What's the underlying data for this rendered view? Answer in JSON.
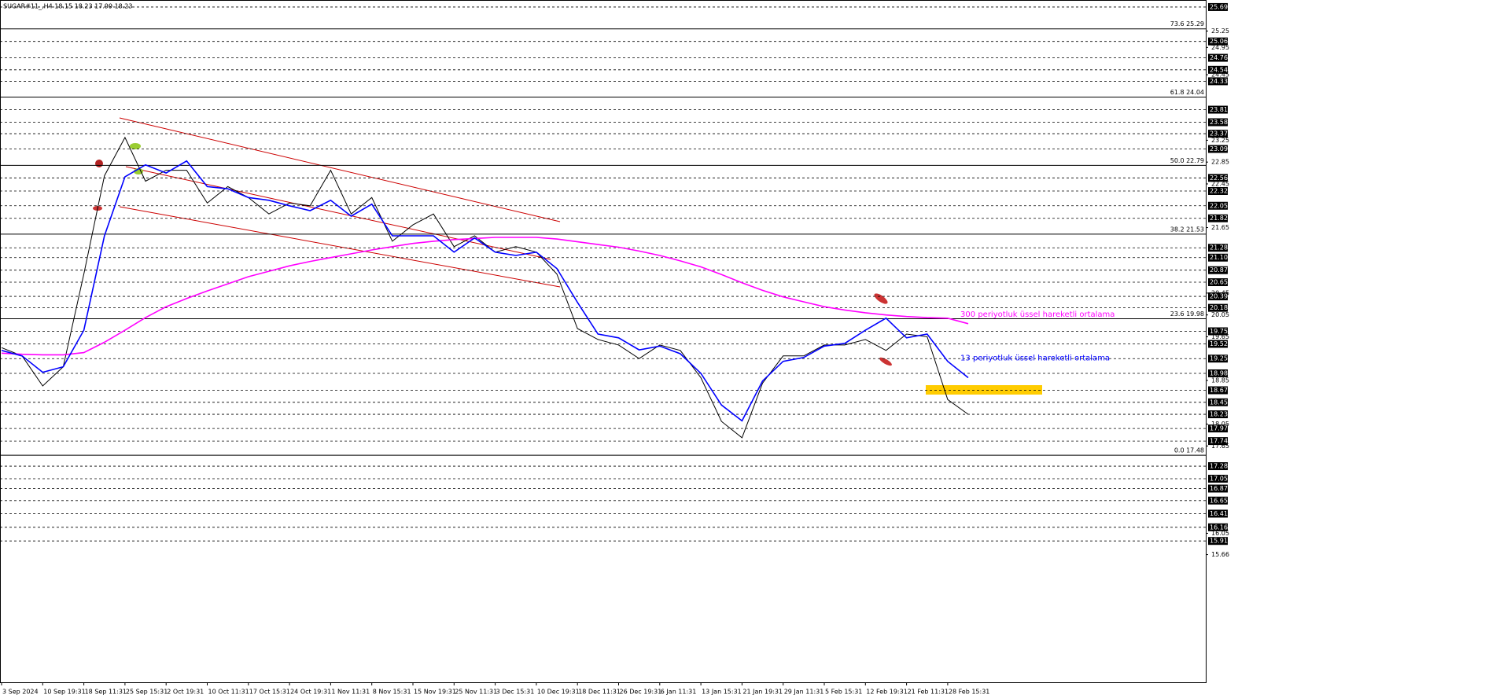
{
  "chart_data": {
    "type": "line",
    "title": "SUGAR#11_,H4  18.15 18.23 17.99 18.23",
    "categories": [
      "3 Sep 2024",
      null,
      "10 Sep 19:31",
      null,
      "18 Sep 11:31",
      null,
      "25 Sep 15:31",
      null,
      "2 Oct 19:31",
      null,
      "10 Oct 11:31",
      null,
      "17 Oct 15:31",
      null,
      "24 Oct 19:31",
      null,
      "1 Nov 11:31",
      null,
      "8 Nov 15:31",
      null,
      "15 Nov 19:31",
      null,
      "25 Nov 11:31",
      null,
      "3 Dec 15:31",
      null,
      "10 Dec 19:31",
      null,
      "18 Dec 11:31",
      null,
      "26 Dec 19:31",
      null,
      "6 Jan 11:31",
      null,
      "13 Jan 15:31",
      null,
      "21 Jan 19:31",
      null,
      "29 Jan 11:31",
      null,
      "5 Feb 15:31",
      null,
      "12 Feb 19:31",
      null,
      "21 Feb 11:31",
      null,
      "28 Feb 15:31",
      null
    ],
    "series": [
      {
        "color": "#000000",
        "values": [
          19.45,
          19.3,
          18.75,
          19.1,
          20.8,
          22.6,
          23.3,
          22.5,
          22.7,
          22.7,
          22.1,
          22.4,
          22.2,
          21.9,
          22.1,
          22.05,
          22.7,
          21.9,
          22.2,
          21.4,
          21.7,
          21.9,
          21.3,
          21.5,
          21.2,
          21.3,
          21.2,
          20.8,
          19.8,
          19.6,
          19.5,
          19.25,
          19.5,
          19.4,
          18.9,
          18.1,
          17.8,
          18.8,
          19.3,
          19.3,
          19.5,
          19.5,
          19.6,
          19.4,
          19.7,
          19.65,
          18.5,
          18.23
        ]
      },
      {
        "name": "300 periyotluk üssel hareketli ortalama",
        "color": "#ff00ff",
        "values": [
          19.35,
          19.33,
          19.32,
          19.32,
          19.36,
          19.55,
          19.77,
          20.0,
          20.2,
          20.35,
          20.49,
          20.62,
          20.75,
          20.85,
          20.95,
          21.03,
          21.1,
          21.17,
          21.24,
          21.3,
          21.36,
          21.4,
          21.43,
          21.45,
          21.47,
          21.47,
          21.47,
          21.44,
          21.39,
          21.34,
          21.29,
          21.22,
          21.14,
          21.04,
          20.93,
          20.79,
          20.64,
          20.5,
          20.38,
          20.29,
          20.2,
          20.14,
          20.09,
          20.05,
          20.02,
          20.0,
          19.99,
          19.89
        ]
      },
      {
        "name": "13 periyotluk üssel hareketli ortalama",
        "color": "#0000ff",
        "values": [
          19.4,
          19.3,
          19.0,
          19.1,
          19.77,
          21.5,
          22.58,
          22.8,
          22.65,
          22.87,
          22.4,
          22.36,
          22.2,
          22.15,
          22.05,
          21.96,
          22.15,
          21.86,
          22.08,
          21.5,
          21.5,
          21.5,
          21.2,
          21.46,
          21.2,
          21.14,
          21.2,
          20.9,
          20.28,
          19.7,
          19.63,
          19.41,
          19.48,
          19.34,
          18.98,
          18.4,
          18.11,
          18.84,
          19.2,
          19.27,
          19.48,
          19.53,
          19.77,
          19.99,
          19.63,
          19.7,
          19.2,
          18.9
        ]
      }
    ],
    "ylim": [
      13.35,
      25.79
    ],
    "yticks": [
      25.25,
      24.95,
      24.45,
      23.25,
      22.85,
      22.45,
      21.65,
      20.45,
      20.05,
      19.65,
      18.85,
      18.05,
      17.65,
      16.05,
      15.66
    ],
    "levels": [
      25.69,
      25.06,
      24.76,
      24.54,
      24.33,
      23.81,
      23.58,
      23.37,
      23.09,
      22.56,
      22.32,
      22.05,
      21.82,
      21.28,
      {
        "value": 21.1,
        "label": "21.10"
      },
      20.87,
      20.65,
      20.39,
      20.18,
      19.75,
      19.52,
      19.25,
      18.98,
      18.67,
      18.45,
      18.23,
      17.97,
      17.74,
      17.28,
      17.05,
      16.87,
      16.65,
      16.41,
      16.16,
      15.91
    ],
    "fib_levels": [
      {
        "value": 25.29,
        "label": "73.6 25.29"
      },
      {
        "value": 24.04,
        "label": "61.8 24.04"
      },
      {
        "value": 22.79,
        "label": "50.0 22.79"
      },
      {
        "value": 21.53,
        "label": "38.2 21.53"
      },
      {
        "value": 19.98,
        "label": "23.6 19.98"
      },
      {
        "value": 17.48,
        "label": "0.0 17.48"
      }
    ]
  }
}
